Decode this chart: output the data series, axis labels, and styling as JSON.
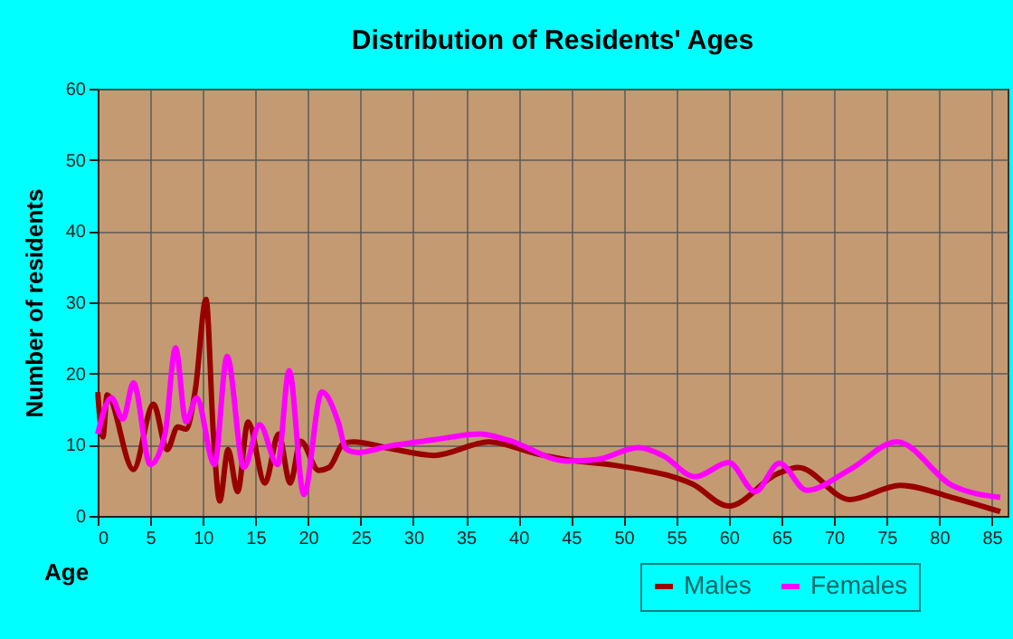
{
  "chart_data": {
    "type": "line",
    "title": "Distribution of Residents' Ages",
    "xlabel": "Age",
    "ylabel": "Number of residents",
    "xlim": [
      0,
      86.5
    ],
    "xticks": [
      0,
      5,
      10,
      15,
      20,
      25,
      30,
      35,
      40,
      45,
      50,
      55,
      60,
      65,
      70,
      75,
      80,
      85
    ],
    "ylim": [
      0,
      60
    ],
    "yticks": [
      0,
      10,
      20,
      30,
      40,
      50,
      60
    ],
    "grid": true,
    "legend": "bottom",
    "marker": "none",
    "line_style": "solid",
    "series": [
      {
        "name": "Males",
        "color": "#990000",
        "x": [
          0,
          0.5,
          0.9,
          3.4,
          5.3,
          6.6,
          7.6,
          8.4,
          9.3,
          10.3,
          11,
          11.6,
          12.4,
          13.3,
          14.3,
          15.9,
          17.2,
          18.3,
          19.3,
          21,
          22,
          23.4,
          24.3,
          27.7,
          32,
          37.2,
          41.8,
          44.6,
          49.2,
          52,
          54.2,
          56.5,
          60,
          64.6,
          66.6,
          71.5,
          76.3,
          81.2,
          85.8
        ],
        "values": [
          17.4,
          11.1,
          17,
          6.5,
          15.7,
          9.3,
          12.5,
          12.2,
          17.9,
          30.4,
          11.5,
          2.1,
          9.3,
          3.4,
          13.2,
          4.6,
          11.5,
          4.6,
          10.5,
          6.4,
          6.8,
          10.2,
          10.4,
          9.5,
          8.5,
          10.4,
          8.7,
          7.9,
          7.1,
          6.4,
          5.7,
          4.5,
          1.4,
          5.9,
          6.8,
          2.3,
          4.3,
          2.6,
          0.6
        ]
      },
      {
        "name": "Females",
        "color": "#ff00ff",
        "x": [
          0,
          1.3,
          2.4,
          3.4,
          5,
          6.4,
          7.4,
          8.4,
          9.4,
          11.1,
          12.3,
          13.9,
          15.4,
          17.1,
          18.2,
          19.6,
          21.3,
          22.9,
          23.6,
          24.7,
          27.7,
          32,
          36.3,
          38.9,
          44.6,
          47.4,
          51.4,
          53.7,
          56.8,
          60,
          62.5,
          64.8,
          67.4,
          71.5,
          76,
          81.2,
          85.8
        ],
        "values": [
          11.5,
          16.6,
          13.6,
          18.7,
          7.2,
          11.5,
          23.6,
          13.2,
          16.6,
          7.2,
          22.4,
          6.8,
          12.8,
          7.2,
          20.4,
          3,
          17.4,
          13,
          9.4,
          8.9,
          9.8,
          10.7,
          11.5,
          10.7,
          7.7,
          7.9,
          9.6,
          8.5,
          5.5,
          7.5,
          3.4,
          7.4,
          3.6,
          6.5,
          10.4,
          4.3,
          2.6
        ]
      }
    ]
  }
}
